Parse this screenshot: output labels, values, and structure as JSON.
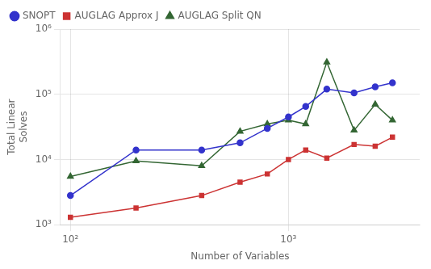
{
  "chart_data": {
    "type": "line",
    "x": [
      100,
      200,
      400,
      600,
      800,
      1000,
      1200,
      1500,
      2000,
      2500,
      3000
    ],
    "series": [
      {
        "name": "SNOPT",
        "color": "#3333cc",
        "marker": "circle",
        "line_style": "solid",
        "values": [
          2800,
          14000,
          14000,
          18000,
          30000,
          45000,
          65000,
          120000,
          105000,
          130000,
          150000
        ]
      },
      {
        "name": "AUGLAG Approx J",
        "color": "#cc3333",
        "marker": "square",
        "line_style": "solid",
        "values": [
          1300,
          1800,
          2800,
          4500,
          6000,
          10000,
          14000,
          10500,
          17000,
          16000,
          22000
        ]
      },
      {
        "name": "AUGLAG Split QN",
        "color": "#336633",
        "marker": "triangle",
        "line_style": "solid",
        "values": [
          5500,
          9500,
          8000,
          27000,
          35000,
          40000,
          35000,
          310000,
          28000,
          70000,
          40000
        ]
      }
    ],
    "xlabel": "Number of Variables",
    "ylabel": "Total Linear\nSolves",
    "log": true,
    "xlim": [
      90,
      4000
    ],
    "ylim": [
      1000,
      1000000
    ],
    "xticks": [
      {
        "value": 100,
        "label": "10²"
      },
      {
        "value": 1000,
        "label": "10³"
      }
    ],
    "yticks": [
      {
        "value": 1000,
        "label": "10³"
      },
      {
        "value": 10000,
        "label": "10⁴"
      },
      {
        "value": 100000,
        "label": "10⁵"
      },
      {
        "value": 1000000,
        "label": "10⁶"
      }
    ],
    "grid": true,
    "legend": "upper left"
  }
}
